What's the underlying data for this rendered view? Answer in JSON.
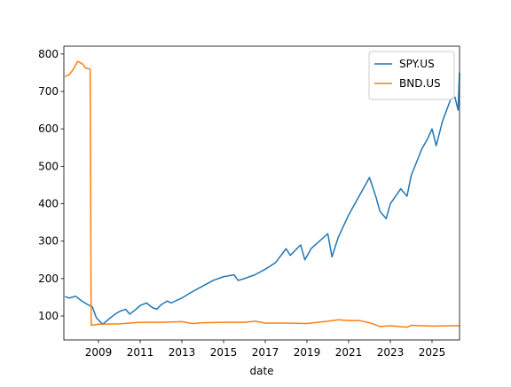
{
  "chart_data": {
    "type": "line",
    "xlabel": "date",
    "xlim": [
      2007.34,
      2026.32
    ],
    "xticks": [
      2009,
      2011,
      2013,
      2015,
      2017,
      2019,
      2021,
      2023,
      2025
    ],
    "ylim": [
      36,
      821
    ],
    "yticks": [
      100,
      200,
      300,
      400,
      500,
      600,
      700,
      800
    ],
    "legend": "upper right",
    "series": [
      {
        "name": "SPY.US",
        "color": "#1f77b4",
        "x": [
          2007.4,
          2007.6,
          2007.9,
          2008.2,
          2008.5,
          2008.7,
          2008.9,
          2009.2,
          2009.5,
          2009.8,
          2010.0,
          2010.3,
          2010.5,
          2010.8,
          2011.0,
          2011.3,
          2011.6,
          2011.8,
          2012.0,
          2012.3,
          2012.5,
          2012.8,
          2013.0,
          2013.5,
          2014.0,
          2014.5,
          2015.0,
          2015.5,
          2015.7,
          2016.0,
          2016.5,
          2017.0,
          2017.5,
          2018.0,
          2018.2,
          2018.7,
          2018.9,
          2019.2,
          2019.5,
          2020.0,
          2020.2,
          2020.5,
          2021.0,
          2021.5,
          2022.0,
          2022.3,
          2022.5,
          2022.8,
          2023.0,
          2023.5,
          2023.8,
          2024.0,
          2024.5,
          2024.8,
          2025.0,
          2025.2,
          2025.5,
          2025.9,
          2026.1,
          2026.25,
          2026.32
        ],
        "values": [
          152,
          148,
          153,
          140,
          130,
          125,
          95,
          78,
          92,
          105,
          112,
          118,
          105,
          118,
          128,
          135,
          122,
          118,
          130,
          140,
          135,
          143,
          148,
          165,
          180,
          195,
          205,
          210,
          195,
          200,
          210,
          225,
          243,
          280,
          262,
          290,
          250,
          280,
          295,
          320,
          258,
          310,
          370,
          420,
          470,
          420,
          380,
          360,
          400,
          440,
          420,
          475,
          545,
          575,
          600,
          555,
          620,
          680,
          685,
          650,
          750
        ]
      },
      {
        "name": "BND.US",
        "color": "#ff7f0e",
        "x": [
          2007.4,
          2007.6,
          2007.8,
          2008.0,
          2008.2,
          2008.4,
          2008.6,
          2008.65,
          2009.0,
          2010.0,
          2011.0,
          2012.0,
          2013.0,
          2013.5,
          2014.0,
          2015.0,
          2016.0,
          2016.5,
          2017.0,
          2018.0,
          2019.0,
          2020.0,
          2020.5,
          2021.0,
          2021.5,
          2022.0,
          2022.5,
          2023.0,
          2023.8,
          2024.0,
          2025.0,
          2026.0,
          2026.32
        ],
        "values": [
          740,
          745,
          760,
          780,
          775,
          762,
          760,
          75,
          78,
          79,
          83,
          83,
          85,
          80,
          82,
          83,
          83,
          86,
          81,
          81,
          80,
          86,
          90,
          88,
          88,
          82,
          72,
          74,
          70,
          75,
          73,
          74,
          74
        ]
      }
    ]
  }
}
